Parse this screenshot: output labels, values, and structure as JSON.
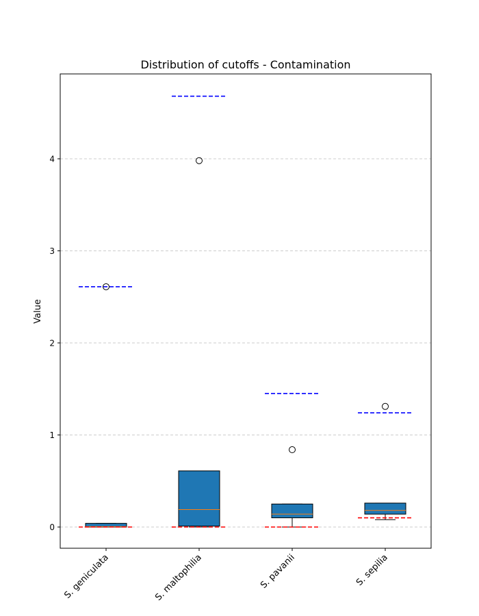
{
  "chart_data": {
    "type": "box",
    "title": "Distribution of cutoffs - Contamination",
    "xlabel": "",
    "ylabel": "Value",
    "ylim": [
      -0.23,
      4.9
    ],
    "yticks": [
      0,
      1,
      2,
      3,
      4
    ],
    "grid": "y-dashed",
    "colors": {
      "box_fill": "#1f77b4",
      "median": "#ff7f0e",
      "upper_cutoff": "#0000ff",
      "lower_cutoff": "#ff0000",
      "grid": "#cccccc"
    },
    "categories": [
      "S. geniculata",
      "S. maltophilia",
      "S. pavanii",
      "S. sepilia"
    ],
    "boxes": [
      {
        "whisker_low": 0.0,
        "q1": 0.0,
        "median": 0.005,
        "q3": 0.04,
        "whisker_high": 0.04,
        "outliers": [
          2.61
        ],
        "upper_cutoff": 2.61,
        "lower_cutoff": 0.0
      },
      {
        "whisker_low": 0.0,
        "q1": 0.01,
        "median": 0.19,
        "q3": 0.61,
        "whisker_high": 0.61,
        "outliers": [
          3.98
        ],
        "upper_cutoff": 4.68,
        "lower_cutoff": 0.0
      },
      {
        "whisker_low": 0.0,
        "q1": 0.1,
        "median": 0.14,
        "q3": 0.25,
        "whisker_high": 0.25,
        "outliers": [
          0.84
        ],
        "upper_cutoff": 1.45,
        "lower_cutoff": 0.0
      },
      {
        "whisker_low": 0.08,
        "q1": 0.14,
        "median": 0.18,
        "q3": 0.26,
        "whisker_high": 0.26,
        "outliers": [
          1.31
        ],
        "upper_cutoff": 1.24,
        "lower_cutoff": 0.1
      }
    ]
  }
}
